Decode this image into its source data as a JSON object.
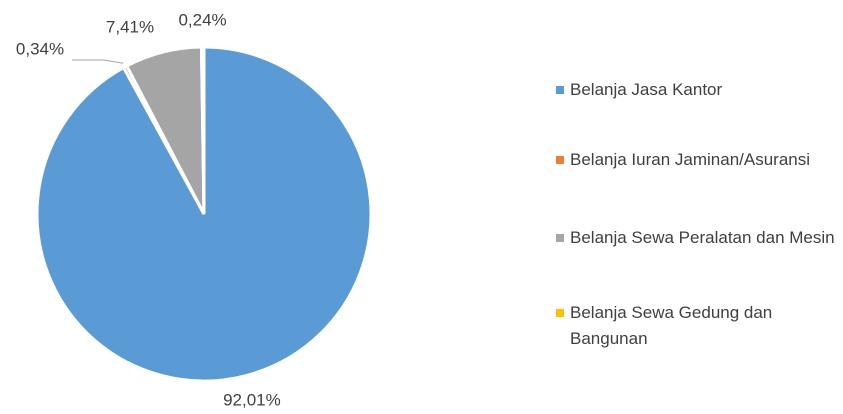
{
  "chart_data": {
    "type": "pie",
    "categories": [
      "Belanja Jasa Kantor",
      "Belanja Iuran Jaminan/Asuransi",
      "Belanja Sewa Peralatan dan Mesin",
      "Belanja Sewa Gedung dan Bangunan"
    ],
    "values": [
      92.01,
      0.34,
      7.41,
      0.24
    ],
    "value_labels": [
      "92,01%",
      "0,34%",
      "7,41%",
      "0,24%"
    ],
    "colors": [
      "#5b9bd5",
      "#ed7d31",
      "#a5a5a5",
      "#ffc000"
    ],
    "legend": "right"
  }
}
